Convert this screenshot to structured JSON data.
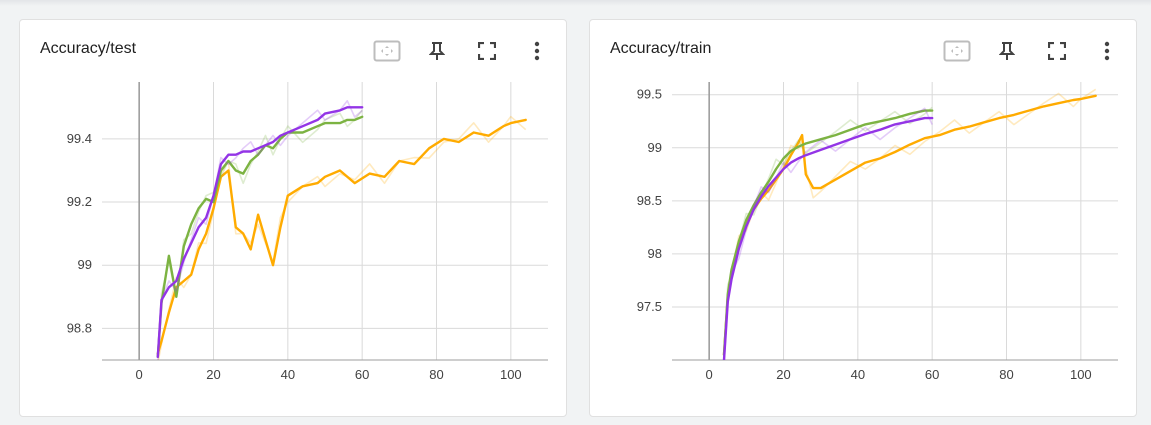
{
  "cards": [
    {
      "title": "Accuracy/test",
      "toolbar": [
        "fit-domain-icon",
        "pin-icon",
        "fullscreen-icon",
        "more-vert-icon"
      ]
    },
    {
      "title": "Accuracy/train",
      "toolbar": [
        "fit-domain-icon",
        "pin-icon",
        "fullscreen-icon",
        "more-vert-icon"
      ]
    }
  ],
  "chart_data": [
    {
      "type": "line",
      "title": "Accuracy/test",
      "xlabel": "",
      "ylabel": "",
      "xlim": [
        -10,
        110
      ],
      "ylim": [
        98.7,
        99.58
      ],
      "xticks": [
        0,
        20,
        40,
        60,
        80,
        100
      ],
      "yticks": [
        98.8,
        99,
        99.2,
        99.4
      ],
      "ytick_labels": [
        "98.8",
        "99",
        "99.2",
        "99.4"
      ],
      "grid": true,
      "series": [
        {
          "color": "#ffab00",
          "x": [
            5,
            6,
            8,
            10,
            12,
            14,
            16,
            18,
            20,
            22,
            24,
            26,
            28,
            30,
            32,
            34,
            36,
            38,
            40,
            44,
            48,
            50,
            54,
            58,
            62,
            66,
            70,
            74,
            78,
            82,
            86,
            90,
            94,
            98,
            100,
            104
          ],
          "y": [
            98.72,
            98.76,
            98.85,
            98.93,
            98.95,
            98.97,
            99.05,
            99.1,
            99.18,
            99.28,
            99.3,
            99.12,
            99.1,
            99.05,
            99.16,
            99.08,
            99.0,
            99.12,
            99.22,
            99.25,
            99.26,
            99.28,
            99.3,
            99.26,
            99.29,
            99.28,
            99.33,
            99.32,
            99.37,
            99.4,
            99.39,
            99.42,
            99.41,
            99.44,
            99.45,
            99.46
          ]
        },
        {
          "color": "#7cb342",
          "x": [
            5,
            6,
            8,
            10,
            12,
            14,
            16,
            18,
            20,
            22,
            24,
            26,
            28,
            30,
            32,
            34,
            36,
            38,
            40,
            44,
            48,
            50,
            54,
            56,
            58,
            60
          ],
          "y": [
            98.71,
            98.88,
            99.03,
            98.9,
            99.06,
            99.13,
            99.18,
            99.21,
            99.2,
            99.3,
            99.33,
            99.3,
            99.29,
            99.33,
            99.35,
            99.38,
            99.37,
            99.4,
            99.42,
            99.42,
            99.44,
            99.45,
            99.45,
            99.46,
            99.46,
            99.47
          ]
        },
        {
          "color": "#9334e6",
          "x": [
            5,
            6,
            8,
            10,
            12,
            14,
            16,
            18,
            20,
            22,
            24,
            26,
            28,
            30,
            32,
            34,
            36,
            38,
            40,
            44,
            48,
            50,
            54,
            56,
            58,
            60
          ],
          "y": [
            98.71,
            98.89,
            98.93,
            98.95,
            99.02,
            99.07,
            99.12,
            99.15,
            99.22,
            99.32,
            99.35,
            99.35,
            99.36,
            99.36,
            99.37,
            99.38,
            99.39,
            99.41,
            99.42,
            99.44,
            99.46,
            99.48,
            99.49,
            99.5,
            99.5,
            99.5
          ]
        }
      ]
    },
    {
      "type": "line",
      "title": "Accuracy/train",
      "xlabel": "",
      "ylabel": "",
      "xlim": [
        -10,
        110
      ],
      "ylim": [
        97.0,
        99.62
      ],
      "xticks": [
        0,
        20,
        40,
        60,
        80,
        100
      ],
      "yticks": [
        97.5,
        98,
        98.5,
        99,
        99.5
      ],
      "ytick_labels": [
        "97.5",
        "98",
        "98.5",
        "99",
        "99.5"
      ],
      "grid": true,
      "series": [
        {
          "color": "#ffab00",
          "x": [
            4,
            5,
            6,
            8,
            10,
            12,
            14,
            16,
            18,
            20,
            22,
            24,
            25,
            26,
            28,
            30,
            34,
            38,
            42,
            46,
            50,
            54,
            58,
            62,
            66,
            70,
            74,
            78,
            82,
            86,
            90,
            94,
            98,
            100,
            104
          ],
          "y": [
            97.05,
            97.6,
            97.8,
            98.08,
            98.28,
            98.42,
            98.52,
            98.6,
            98.7,
            98.8,
            98.93,
            99.05,
            99.12,
            98.75,
            98.62,
            98.62,
            98.7,
            98.78,
            98.86,
            98.9,
            98.96,
            99.03,
            99.09,
            99.12,
            99.17,
            99.2,
            99.24,
            99.28,
            99.31,
            99.35,
            99.39,
            99.42,
            99.45,
            99.46,
            99.49
          ]
        },
        {
          "color": "#7cb342",
          "x": [
            4,
            5,
            6,
            8,
            10,
            12,
            14,
            16,
            18,
            20,
            22,
            24,
            26,
            30,
            34,
            38,
            42,
            46,
            50,
            54,
            58,
            60
          ],
          "y": [
            97.05,
            97.62,
            97.85,
            98.12,
            98.32,
            98.46,
            98.58,
            98.68,
            98.8,
            98.9,
            98.97,
            99.01,
            99.04,
            99.08,
            99.12,
            99.17,
            99.22,
            99.25,
            99.28,
            99.32,
            99.35,
            99.35
          ]
        },
        {
          "color": "#9334e6",
          "x": [
            4,
            5,
            6,
            8,
            10,
            12,
            14,
            16,
            18,
            20,
            22,
            24,
            26,
            30,
            34,
            38,
            42,
            46,
            50,
            54,
            58,
            60
          ],
          "y": [
            97.0,
            97.55,
            97.76,
            98.05,
            98.26,
            98.42,
            98.54,
            98.64,
            98.72,
            98.8,
            98.86,
            98.9,
            98.93,
            98.98,
            99.03,
            99.08,
            99.13,
            99.17,
            99.22,
            99.25,
            99.28,
            99.28
          ]
        }
      ]
    }
  ]
}
